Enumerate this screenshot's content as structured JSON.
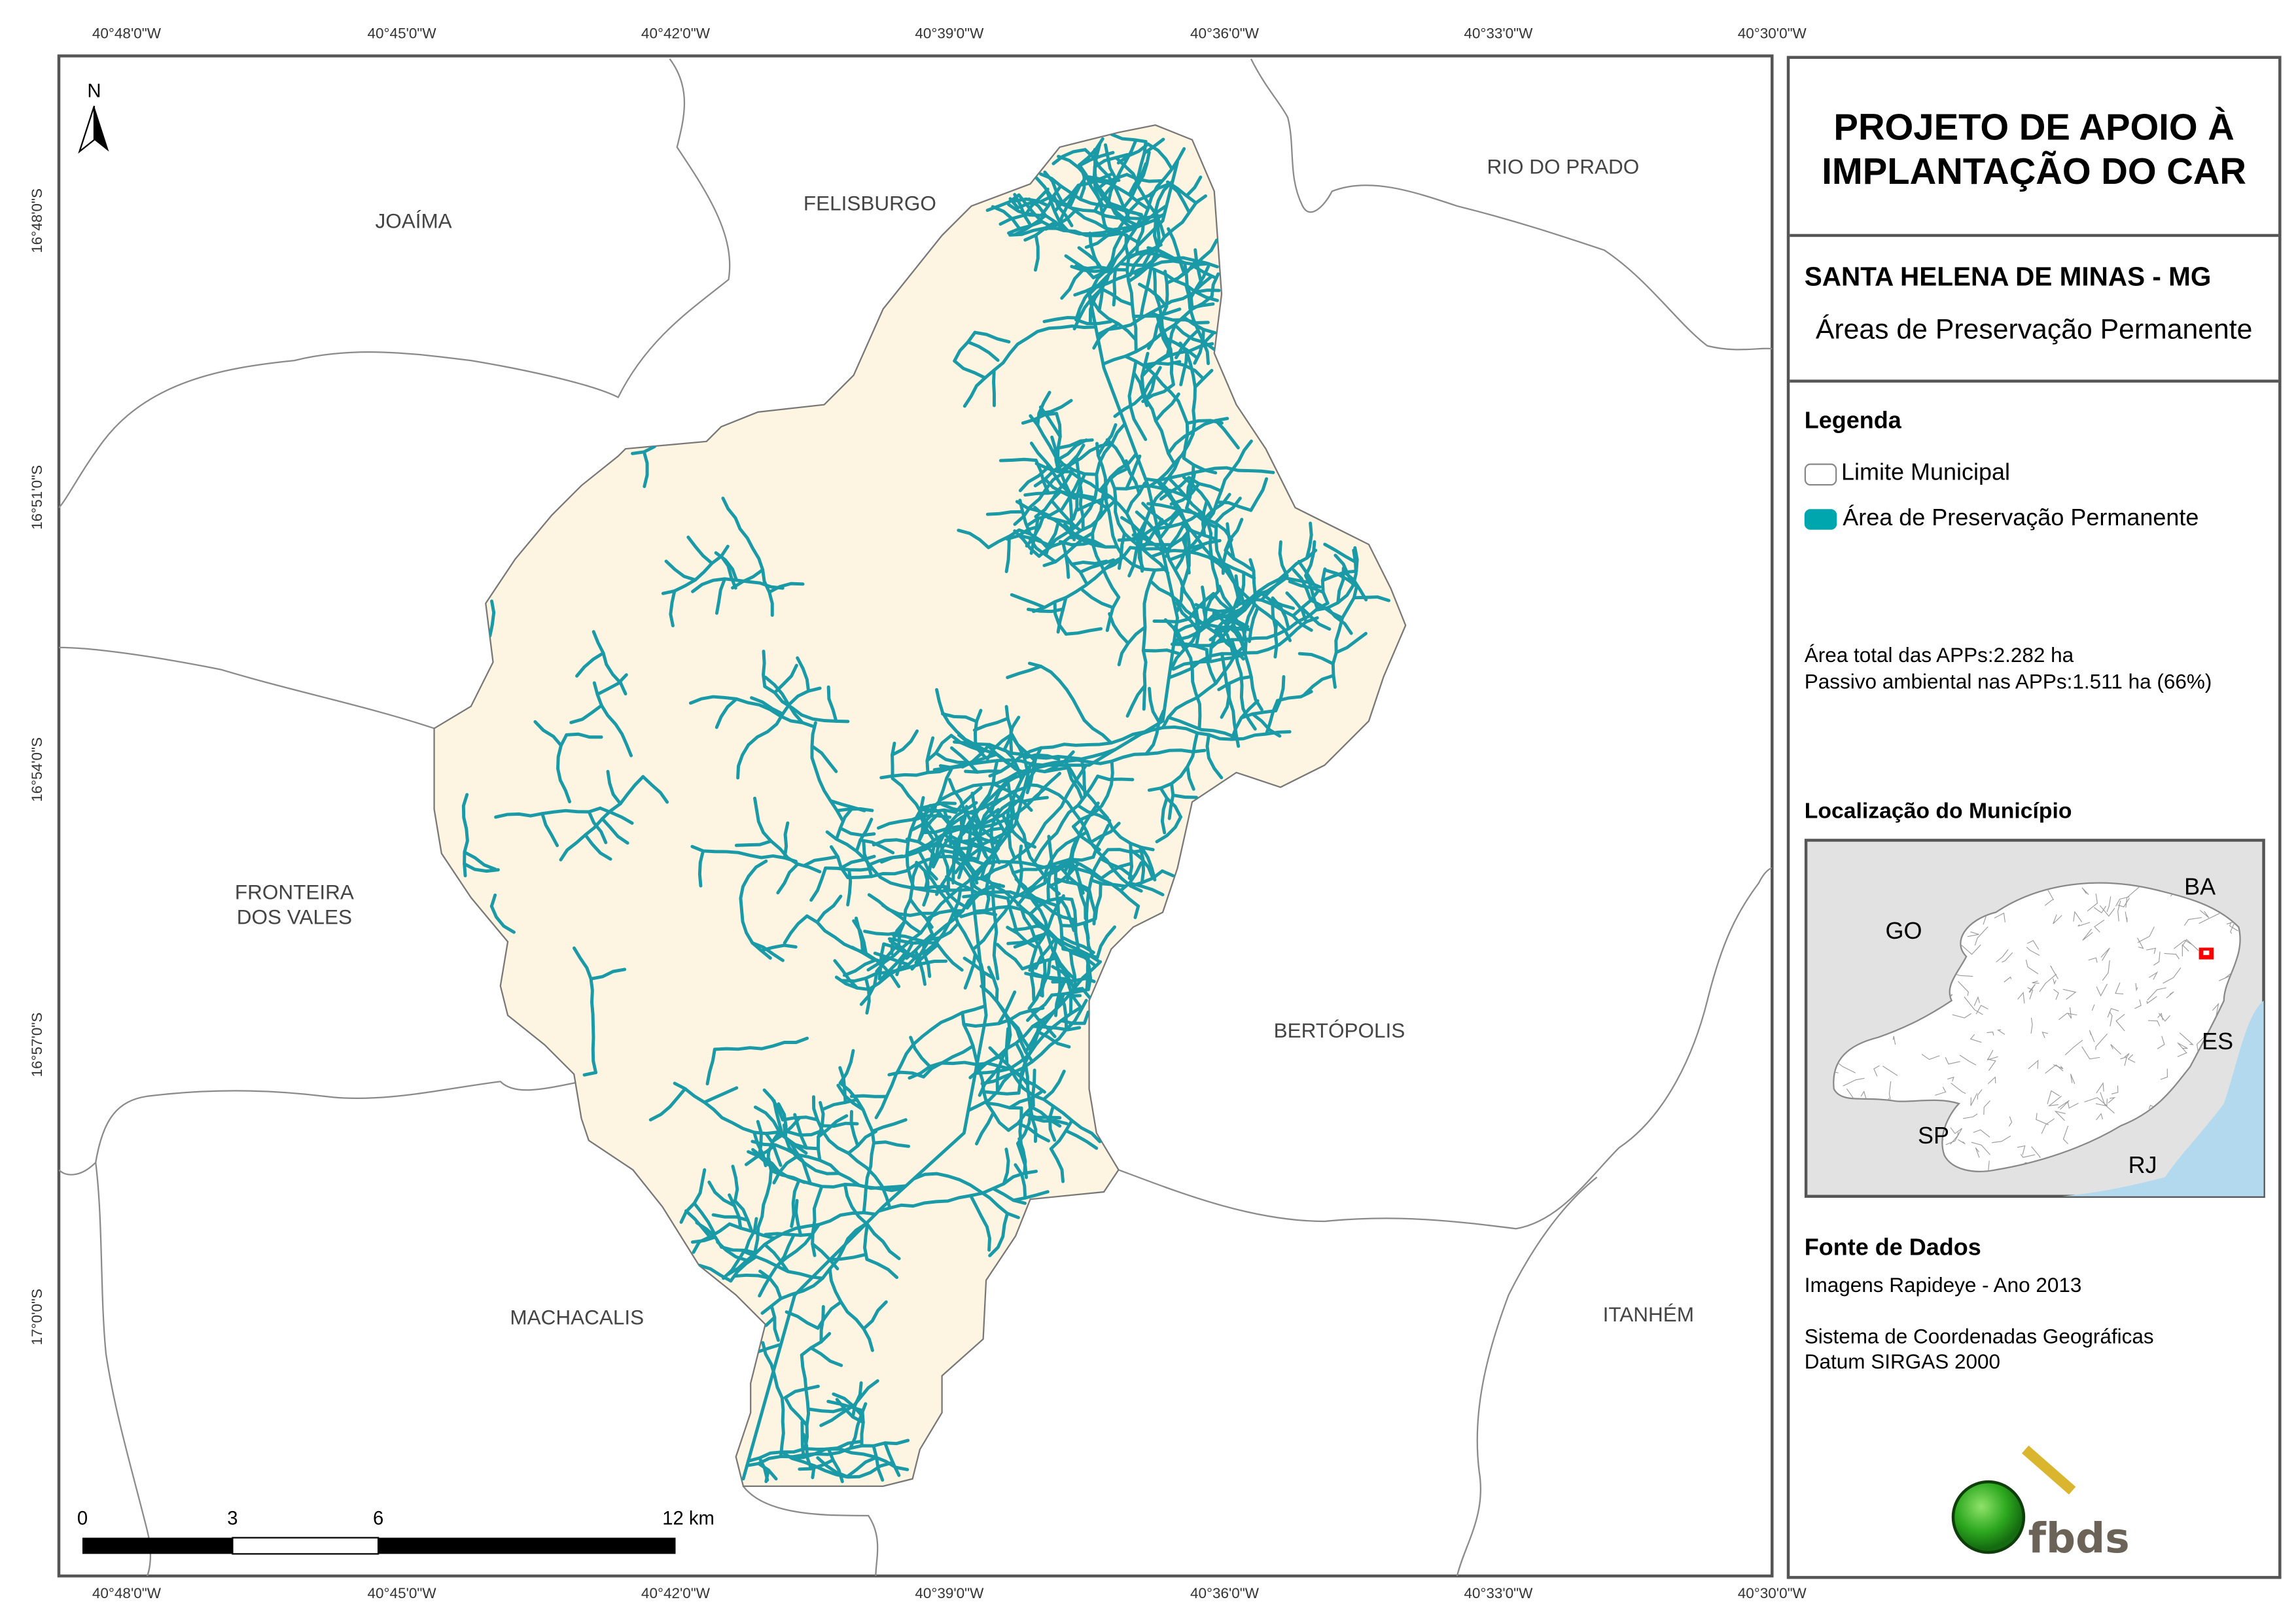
{
  "title": {
    "line1": "PROJETO DE APOIO À",
    "line2": "IMPLANTAÇÃO DO CAR"
  },
  "municipality": "SANTA HELENA DE MINAS - MG",
  "subtitle": "Áreas de Preservação Permanente",
  "legend": {
    "heading": "Legenda",
    "items": [
      {
        "label": "Limite Municipal",
        "symbol": "outline",
        "color": "#888888"
      },
      {
        "label": "Área de Preservação Permanente",
        "symbol": "fill",
        "color": "#00A6AD"
      }
    ]
  },
  "stats": {
    "total": "Área total das APPs:2.282 ha",
    "passive": "Passivo ambiental nas APPs:1.511 ha (66%)"
  },
  "location": {
    "heading": "Localização do Município",
    "states": [
      "GO",
      "BA",
      "ES",
      "SP",
      "RJ"
    ],
    "highlight_color": "#FF0000",
    "sea_color": "#B3D9EE"
  },
  "sources": {
    "heading": "Fonte de Dados",
    "imagery": "Imagens Rapideye - Ano 2013",
    "crs": "Sistema de Coordenadas Geográficas",
    "datum": "Datum SIRGAS 2000"
  },
  "logo": "fbds",
  "map": {
    "north": "N",
    "municipality_fill": "#FDF5E1",
    "stream_color": "#1A9AA6",
    "lon_ticks": [
      "40°48'0\"W",
      "40°45'0\"W",
      "40°42'0\"W",
      "40°39'0\"W",
      "40°36'0\"W",
      "40°33'0\"W",
      "40°30'0\"W"
    ],
    "lat_ticks": [
      "16°48'0\"S",
      "16°51'0\"S",
      "16°54'0\"S",
      "16°57'0\"S",
      "17°0'0\"S"
    ],
    "neighbors": [
      "JOAÍMA",
      "FELISBURGO",
      "RIO DO PRADO",
      "FRONTEIRA",
      "DOS VALES",
      "BERTÓPOLIS",
      "MACHACALIS",
      "ITANHÉM"
    ],
    "scale": {
      "labels": [
        "0",
        "3",
        "6",
        "12 km"
      ]
    }
  }
}
